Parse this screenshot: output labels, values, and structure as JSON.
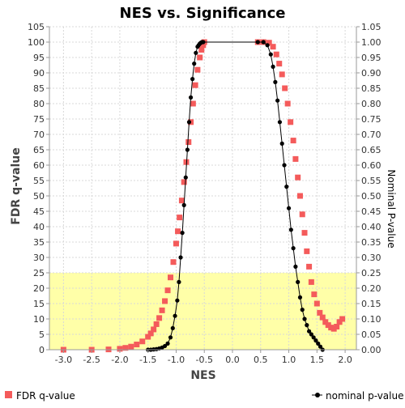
{
  "chart_data": {
    "type": "scatter",
    "title": "NES vs. Significance",
    "xlabel": "NES",
    "ylabel_left": "FDR q-value",
    "ylabel_right": "Nominal P-value",
    "xlim": [
      -3.25,
      2.2
    ],
    "ylim_left": [
      0,
      105
    ],
    "ylim_right": [
      0,
      1.05
    ],
    "xticks": [
      "-3.0",
      "-2.5",
      "-2.0",
      "-1.5",
      "-1.0",
      "-0.5",
      "0.0",
      "0.5",
      "1.0",
      "1.5",
      "2.0"
    ],
    "xtick_values": [
      -3.0,
      -2.5,
      -2.0,
      -1.5,
      -1.0,
      -0.5,
      0.0,
      0.5,
      1.0,
      1.5,
      2.0
    ],
    "yticks_left": [
      "0",
      "5",
      "10",
      "15",
      "20",
      "25",
      "30",
      "35",
      "40",
      "45",
      "50",
      "55",
      "60",
      "65",
      "70",
      "75",
      "80",
      "85",
      "90",
      "95",
      "100",
      "105"
    ],
    "yticks_right": [
      "0.00",
      "0.05",
      "0.10",
      "0.15",
      "0.20",
      "0.25",
      "0.30",
      "0.35",
      "0.40",
      "0.45",
      "0.50",
      "0.55",
      "0.60",
      "0.65",
      "0.70",
      "0.75",
      "0.80",
      "0.85",
      "0.90",
      "0.95",
      "1.00",
      "1.05"
    ],
    "significance_band": {
      "from": 0,
      "to": 25,
      "color": "#ffffa8"
    },
    "grid": true,
    "legend_position": "bottom",
    "series": [
      {
        "name": "FDR q-value",
        "axis": "left",
        "marker": "square",
        "color": "#f45b5b",
        "x": [
          -3.0,
          -2.5,
          -2.2,
          -2.0,
          -1.9,
          -1.8,
          -1.7,
          -1.6,
          -1.5,
          -1.45,
          -1.4,
          -1.35,
          -1.3,
          -1.25,
          -1.2,
          -1.15,
          -1.1,
          -1.05,
          -1.0,
          -0.97,
          -0.94,
          -0.9,
          -0.86,
          -0.82,
          -0.78,
          -0.74,
          -0.7,
          -0.66,
          -0.62,
          -0.58,
          -0.55,
          -0.52,
          -0.5,
          0.45,
          0.55,
          0.65,
          0.72,
          0.78,
          0.83,
          0.88,
          0.93,
          0.98,
          1.03,
          1.08,
          1.12,
          1.16,
          1.2,
          1.24,
          1.28,
          1.32,
          1.36,
          1.4,
          1.45,
          1.5,
          1.55,
          1.6,
          1.65,
          1.7,
          1.75,
          1.8,
          1.85,
          1.9,
          1.95
        ],
        "y": [
          0,
          0,
          0.1,
          0.3,
          0.6,
          1.0,
          1.7,
          2.7,
          4.2,
          5.3,
          6.6,
          8.3,
          10.3,
          12.8,
          15.8,
          19.3,
          23.5,
          28.5,
          34.5,
          38.5,
          43,
          48.5,
          54.5,
          61,
          67.5,
          74,
          80,
          86,
          91,
          95,
          97.5,
          99,
          100,
          100,
          100,
          99.8,
          98.5,
          96,
          93,
          89.5,
          85,
          80,
          74,
          68,
          62,
          56,
          50,
          44,
          38,
          32,
          27,
          22,
          18,
          15,
          12,
          10.5,
          9,
          8,
          7.2,
          6.8,
          7.5,
          9,
          10
        ]
      },
      {
        "name": "nominal p-value",
        "axis": "right",
        "marker": "circle",
        "color": "#000000",
        "x": [
          -1.5,
          -1.45,
          -1.4,
          -1.35,
          -1.3,
          -1.25,
          -1.2,
          -1.15,
          -1.1,
          -1.06,
          -1.02,
          -0.98,
          -0.95,
          -0.92,
          -0.89,
          -0.86,
          -0.83,
          -0.8,
          -0.77,
          -0.74,
          -0.71,
          -0.68,
          -0.65,
          -0.62,
          -0.6,
          -0.58,
          -0.56,
          -0.54,
          -0.52,
          0.45,
          0.55,
          0.62,
          0.68,
          0.72,
          0.76,
          0.8,
          0.84,
          0.88,
          0.92,
          0.96,
          1.0,
          1.04,
          1.08,
          1.12,
          1.16,
          1.2,
          1.24,
          1.28,
          1.32,
          1.36,
          1.4,
          1.44,
          1.48,
          1.52,
          1.56,
          1.6
        ],
        "y": [
          0,
          0,
          0.001,
          0.002,
          0.004,
          0.007,
          0.012,
          0.02,
          0.04,
          0.07,
          0.11,
          0.16,
          0.22,
          0.3,
          0.38,
          0.47,
          0.56,
          0.65,
          0.74,
          0.82,
          0.88,
          0.93,
          0.965,
          0.985,
          0.99,
          0.995,
          0.998,
          1.0,
          1.0,
          1.0,
          1.0,
          0.99,
          0.96,
          0.92,
          0.87,
          0.81,
          0.74,
          0.67,
          0.6,
          0.53,
          0.46,
          0.39,
          0.33,
          0.27,
          0.22,
          0.17,
          0.13,
          0.1,
          0.08,
          0.06,
          0.05,
          0.04,
          0.03,
          0.02,
          0.01,
          0.0
        ]
      }
    ]
  }
}
